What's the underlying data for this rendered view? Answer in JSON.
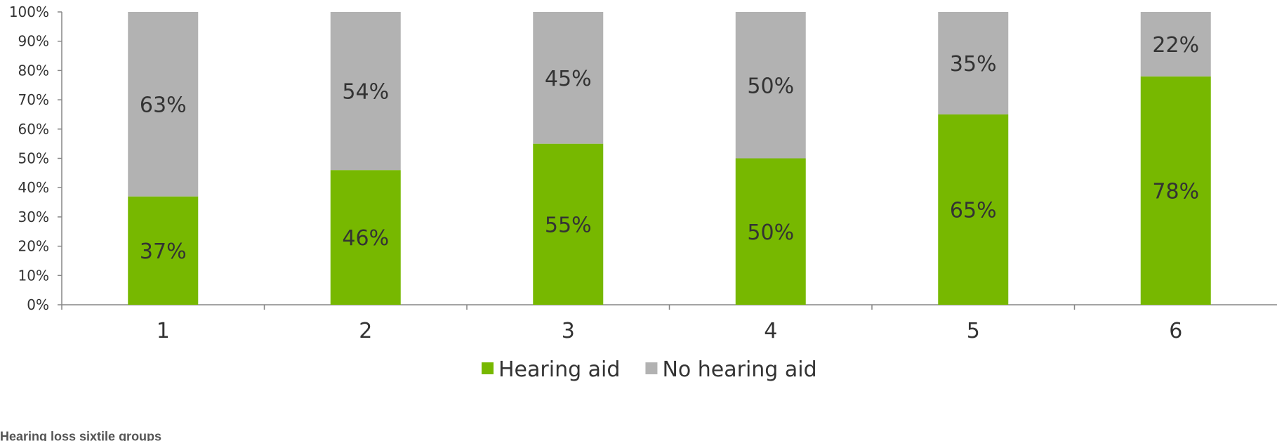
{
  "chart_data": {
    "type": "bar",
    "stacked": true,
    "categories": [
      "1",
      "2",
      "3",
      "4",
      "5",
      "6"
    ],
    "series": [
      {
        "name": "Hearing aid",
        "color": "#77b800",
        "values": [
          37,
          46,
          55,
          50,
          65,
          78
        ],
        "labels": [
          "37%",
          "46%",
          "55%",
          "50%",
          "65%",
          "78%"
        ]
      },
      {
        "name": "No hearing aid",
        "color": "#b2b2b2",
        "values": [
          63,
          54,
          45,
          50,
          35,
          22
        ],
        "labels": [
          "63%",
          "54%",
          "45%",
          "50%",
          "35%",
          "22%"
        ]
      }
    ],
    "y_ticks": [
      "0%",
      "10%",
      "20%",
      "30%",
      "40%",
      "50%",
      "60%",
      "70%",
      "80%",
      "90%",
      "100%"
    ],
    "ylim": [
      0,
      100
    ],
    "xlabel": "Hearing loss sixtile groups",
    "ylabel": "",
    "title": "",
    "legend": "bottom-center",
    "grid": false
  }
}
